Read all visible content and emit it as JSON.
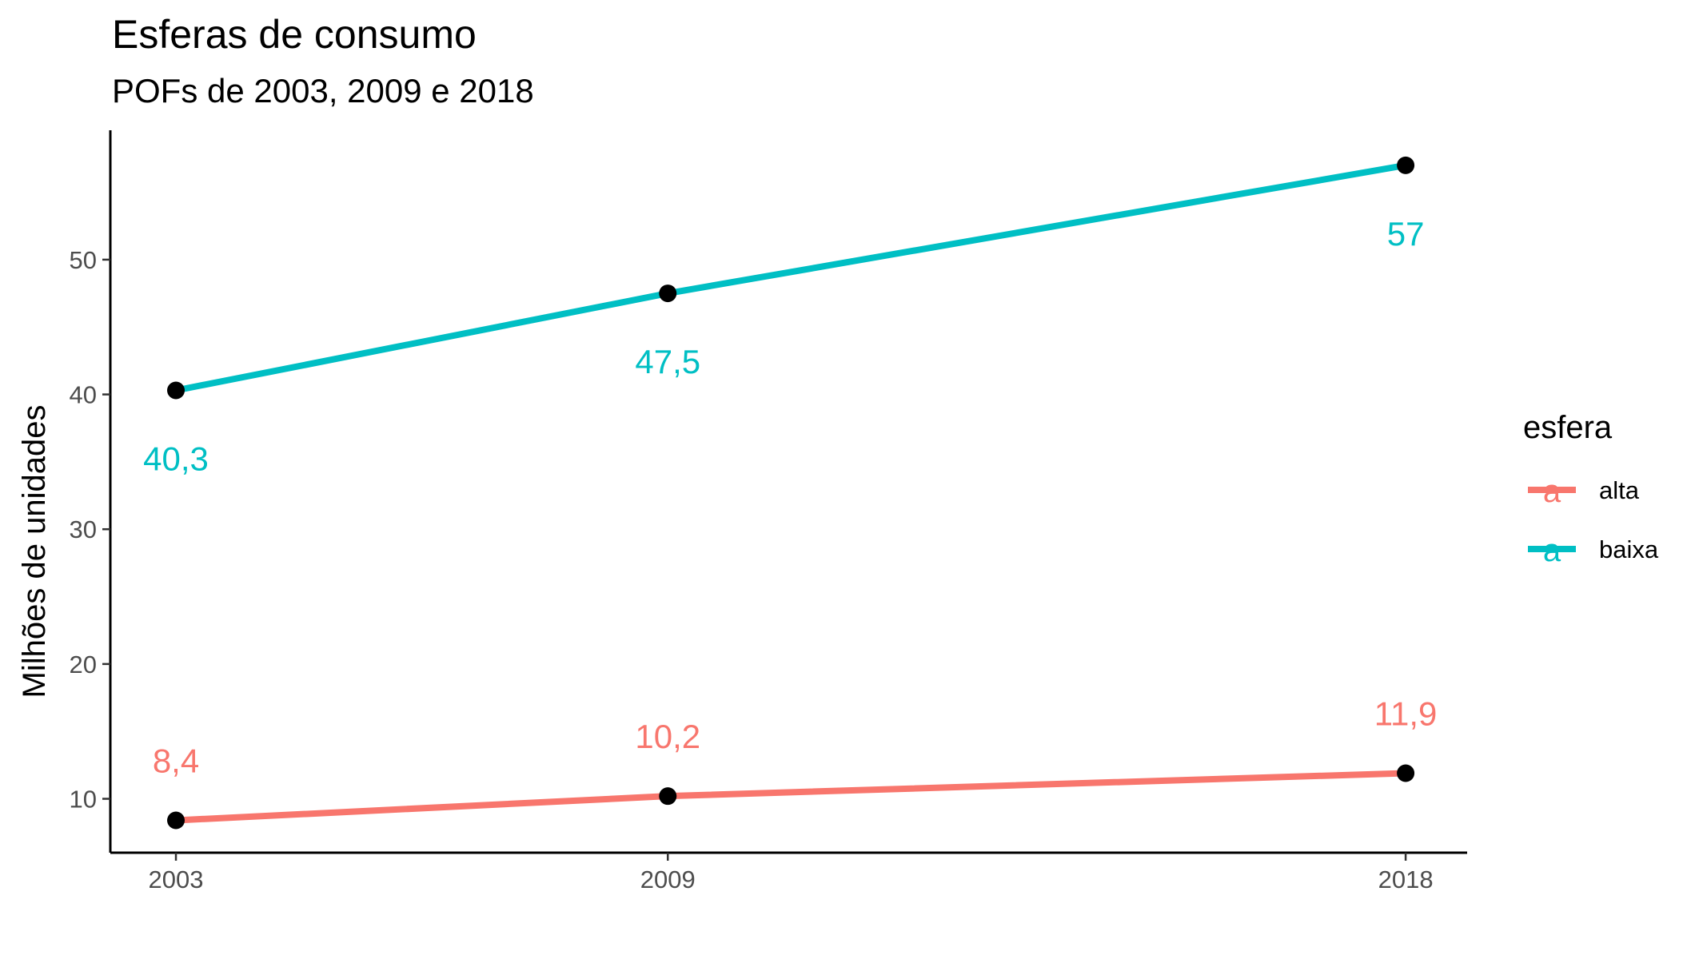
{
  "chart_data": {
    "type": "line",
    "title": "Esferas de consumo",
    "subtitle": "POFs de 2003, 2009 e 2018",
    "xlabel": "",
    "ylabel": "Milhões de unidades",
    "categories": [
      "2003",
      "2009",
      "2018"
    ],
    "x": [
      2003,
      2009,
      2018
    ],
    "xlim": [
      2002.2,
      2018.75
    ],
    "ylim": [
      6.0,
      59.6
    ],
    "yticks": [
      10,
      20,
      30,
      40,
      50
    ],
    "grid": false,
    "point_color": "#000000",
    "legend": {
      "title": "esfera",
      "placement": "right",
      "glyph": "a"
    },
    "series": [
      {
        "name": "alta",
        "color": "#F8766D",
        "values": [
          8.4,
          10.2,
          11.9
        ],
        "labels": [
          "8,4",
          "10,2",
          "11,9"
        ],
        "label_position": "above"
      },
      {
        "name": "baixa",
        "color": "#00BFC4",
        "values": [
          40.3,
          47.5,
          57
        ],
        "labels": [
          "40,3",
          "47,5",
          "57"
        ],
        "label_position": "below"
      }
    ]
  }
}
